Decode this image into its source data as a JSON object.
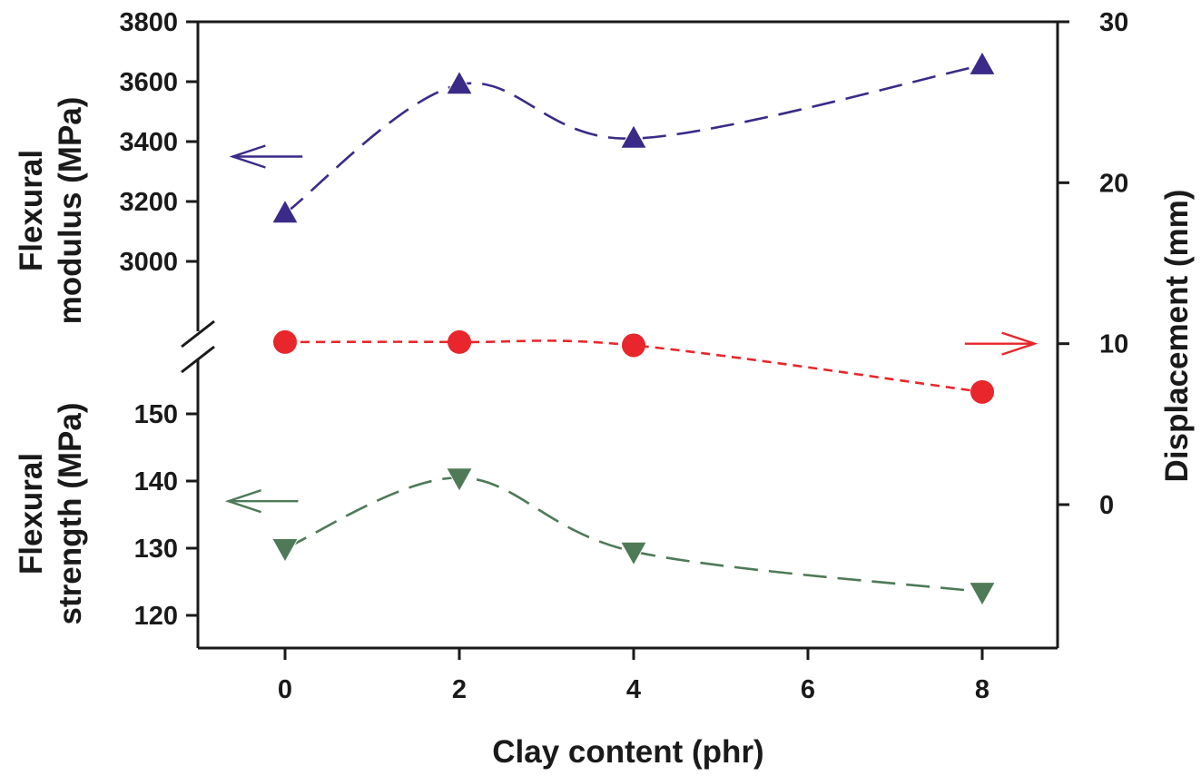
{
  "chart_data": {
    "type": "line",
    "xlabel": "Clay content (phr)",
    "x_ticks": [
      "0",
      "2",
      "4",
      "6",
      "8"
    ],
    "xlim": [
      -1,
      9
    ],
    "left_axis": {
      "broken": true,
      "upper_label_lines": [
        "Flexural",
        "modulus (MPa)"
      ],
      "upper_ylim": [
        2860,
        3800
      ],
      "upper_ticks": [
        "3000",
        "3200",
        "3400",
        "3600",
        "3800"
      ],
      "lower_label_lines": [
        "Flexural",
        "strength (MPa)"
      ],
      "lower_ylim": [
        115,
        157
      ],
      "lower_ticks": [
        "120",
        "130",
        "140",
        "150"
      ]
    },
    "right_axis": {
      "label": "Displacement (mm)",
      "ylim": [
        -9,
        30
      ],
      "ticks": [
        "0",
        "10",
        "20",
        "30"
      ]
    },
    "series": [
      {
        "axis": "left-upper",
        "marker": "triangle-up",
        "color": "#3b2a88",
        "x": [
          0,
          2,
          4,
          8
        ],
        "y": [
          3160,
          3590,
          3410,
          3655
        ],
        "legend_arrow": {
          "direction": "left",
          "x_from": 0.2,
          "x_to": -0.6,
          "y": 3350
        }
      },
      {
        "axis": "right",
        "marker": "circle",
        "color": "#e8262b",
        "x": [
          0,
          2,
          4,
          8
        ],
        "y": [
          10.1,
          10.1,
          9.9,
          7.0
        ],
        "legend_arrow": {
          "direction": "right",
          "x_from": 7.8,
          "x_to": 8.6,
          "y": 10
        }
      },
      {
        "axis": "left-lower",
        "marker": "triangle-down",
        "color": "#4e7a57",
        "x": [
          0,
          2,
          4,
          8
        ],
        "y": [
          130,
          140.5,
          129.5,
          123.5
        ],
        "legend_arrow": {
          "direction": "left",
          "x_from": 0.15,
          "x_to": -0.65,
          "y": 137
        }
      }
    ]
  }
}
